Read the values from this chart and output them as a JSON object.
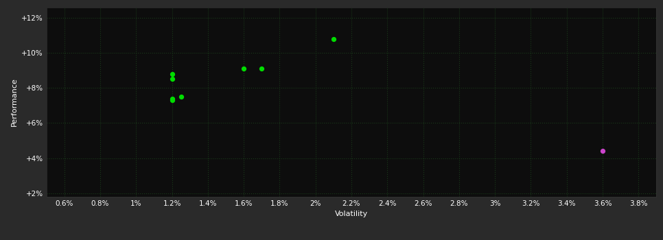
{
  "background_color": "#2a2a2a",
  "plot_bg_color": "#0d0d0d",
  "grid_color": "#1a3a1a",
  "text_color": "#ffffff",
  "xlabel": "Volatility",
  "ylabel": "Performance",
  "xlim": [
    0.005,
    0.039
  ],
  "ylim": [
    0.018,
    0.126
  ],
  "xticks": [
    0.006,
    0.008,
    0.01,
    0.012,
    0.014,
    0.016,
    0.018,
    0.02,
    0.022,
    0.024,
    0.026,
    0.028,
    0.03,
    0.032,
    0.034,
    0.036,
    0.038
  ],
  "yticks": [
    0.02,
    0.04,
    0.06,
    0.08,
    0.1,
    0.12
  ],
  "xtick_labels": [
    "0.6%",
    "0.8%",
    "1%",
    "1.2%",
    "1.4%",
    "1.6%",
    "1.8%",
    "2%",
    "2.2%",
    "2.4%",
    "2.6%",
    "2.8%",
    "3%",
    "3.2%",
    "3.4%",
    "3.6%",
    "3.8%"
  ],
  "ytick_labels": [
    "+2%",
    "+4%",
    "+6%",
    "+8%",
    "+10%",
    "+12%"
  ],
  "green_points": [
    [
      0.012,
      0.088
    ],
    [
      0.012,
      0.085
    ],
    [
      0.012,
      0.074
    ],
    [
      0.012,
      0.073
    ],
    [
      0.0125,
      0.075
    ],
    [
      0.016,
      0.091
    ],
    [
      0.017,
      0.091
    ],
    [
      0.021,
      0.108
    ]
  ],
  "magenta_points": [
    [
      0.036,
      0.044
    ]
  ],
  "green_color": "#00dd00",
  "magenta_color": "#cc44cc",
  "marker_size": 18
}
